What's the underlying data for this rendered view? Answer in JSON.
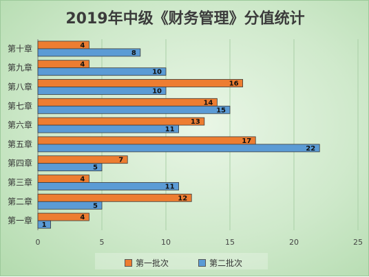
{
  "chart_data": {
    "type": "bar",
    "orientation": "horizontal",
    "title": "2019年中级《财务管理》分值统计",
    "categories": [
      "第一章",
      "第二章",
      "第三章",
      "第四章",
      "第五章",
      "第六章",
      "第七章",
      "第八章",
      "第九章",
      "第十章"
    ],
    "series": [
      {
        "name": "第一批次",
        "values": [
          4,
          12,
          4,
          7,
          17,
          13,
          14,
          16,
          4,
          4
        ],
        "color": "#ed7d31"
      },
      {
        "name": "第二批次",
        "values": [
          1,
          5,
          11,
          5,
          22,
          11,
          15,
          10,
          10,
          8
        ],
        "color": "#5b9bd5"
      }
    ],
    "xticks": [
      "0",
      "5",
      "10",
      "15",
      "20",
      "25"
    ],
    "xlim": [
      0,
      25
    ],
    "grid": true,
    "legend_position": "bottom",
    "data_labels": true
  }
}
